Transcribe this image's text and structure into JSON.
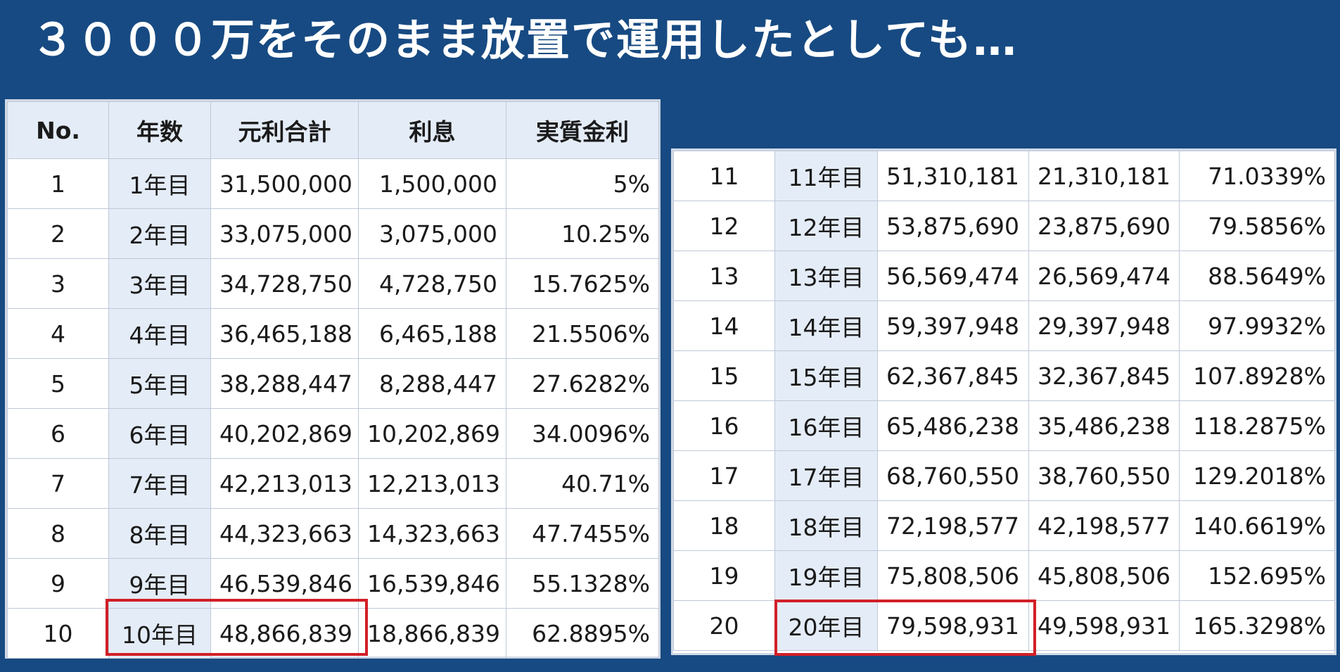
{
  "title": "３０００万をそのまま放置で運用したとしても…",
  "headers": [
    "No.",
    "年数",
    "元利合計",
    "利息",
    "実質金利"
  ],
  "left_rows": [
    {
      "no": "1",
      "year": "1年目",
      "total": "31,500,000",
      "interest": "1,500,000",
      "rate": "5%"
    },
    {
      "no": "2",
      "year": "2年目",
      "total": "33,075,000",
      "interest": "3,075,000",
      "rate": "10.25%"
    },
    {
      "no": "3",
      "year": "3年目",
      "total": "34,728,750",
      "interest": "4,728,750",
      "rate": "15.7625%"
    },
    {
      "no": "4",
      "year": "4年目",
      "total": "36,465,188",
      "interest": "6,465,188",
      "rate": "21.5506%"
    },
    {
      "no": "5",
      "year": "5年目",
      "total": "38,288,447",
      "interest": "8,288,447",
      "rate": "27.6282%"
    },
    {
      "no": "6",
      "year": "6年目",
      "total": "40,202,869",
      "interest": "10,202,869",
      "rate": "34.0096%"
    },
    {
      "no": "7",
      "year": "7年目",
      "total": "42,213,013",
      "interest": "12,213,013",
      "rate": "40.71%"
    },
    {
      "no": "8",
      "year": "8年目",
      "total": "44,323,663",
      "interest": "14,323,663",
      "rate": "47.7455%"
    },
    {
      "no": "9",
      "year": "9年目",
      "total": "46,539,846",
      "interest": "16,539,846",
      "rate": "55.1328%"
    },
    {
      "no": "10",
      "year": "10年目",
      "total": "48,866,839",
      "interest": "18,866,839",
      "rate": "62.8895%"
    }
  ],
  "right_rows": [
    {
      "no": "11",
      "year": "11年目",
      "total": "51,310,181",
      "interest": "21,310,181",
      "rate": "71.0339%"
    },
    {
      "no": "12",
      "year": "12年目",
      "total": "53,875,690",
      "interest": "23,875,690",
      "rate": "79.5856%"
    },
    {
      "no": "13",
      "year": "13年目",
      "total": "56,569,474",
      "interest": "26,569,474",
      "rate": "88.5649%"
    },
    {
      "no": "14",
      "year": "14年目",
      "total": "59,397,948",
      "interest": "29,397,948",
      "rate": "97.9932%"
    },
    {
      "no": "15",
      "year": "15年目",
      "total": "62,367,845",
      "interest": "32,367,845",
      "rate": "107.8928%"
    },
    {
      "no": "16",
      "year": "16年目",
      "total": "65,486,238",
      "interest": "35,486,238",
      "rate": "118.2875%"
    },
    {
      "no": "17",
      "year": "17年目",
      "total": "68,760,550",
      "interest": "38,760,550",
      "rate": "129.2018%"
    },
    {
      "no": "18",
      "year": "18年目",
      "total": "72,198,577",
      "interest": "42,198,577",
      "rate": "140.6619%"
    },
    {
      "no": "19",
      "year": "19年目",
      "total": "75,808,506",
      "interest": "45,808,506",
      "rate": "152.695%"
    },
    {
      "no": "20",
      "year": "20年目",
      "total": "79,598,931",
      "interest": "49,598,931",
      "rate": "165.3298%"
    }
  ],
  "colors": {
    "background": "#174a82",
    "header_fill": "#e4ecf7",
    "highlight_border": "#d21f27",
    "text": "#1a1a1a"
  }
}
